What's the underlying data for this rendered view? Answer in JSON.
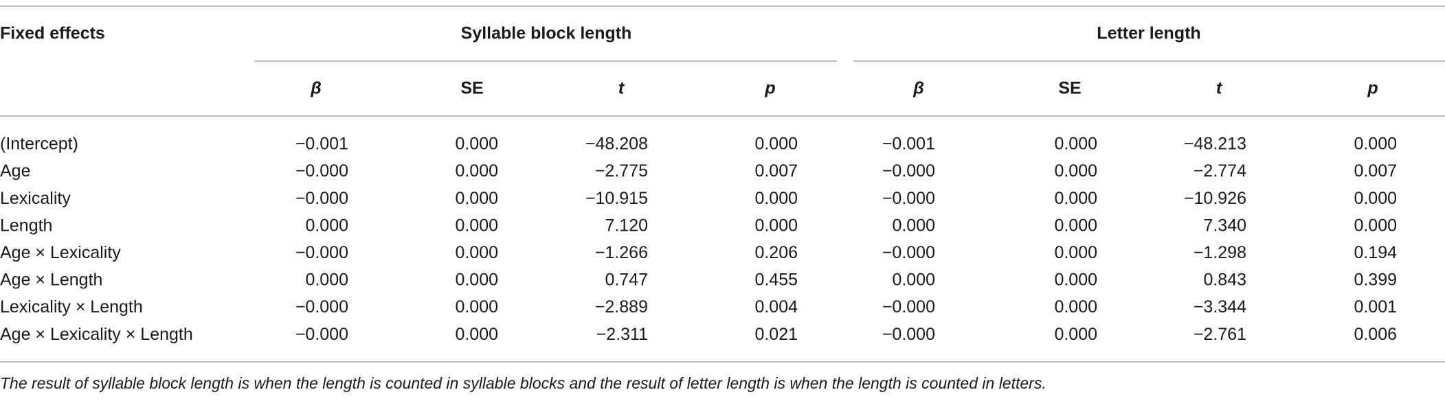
{
  "table": {
    "stub_header": "Fixed effects",
    "groups": [
      {
        "title": "Syllable block length",
        "columns": [
          "β",
          "SE",
          "t",
          "p"
        ]
      },
      {
        "title": "Letter length",
        "columns": [
          "β",
          "SE",
          "t",
          "p"
        ]
      }
    ],
    "rows": [
      [
        "(Intercept)",
        "−0.001",
        "0.000",
        "−48.208",
        "0.000",
        "−0.001",
        "0.000",
        "−48.213",
        "0.000"
      ],
      [
        "Age",
        "−0.000",
        "0.000",
        "−2.775",
        "0.007",
        "−0.000",
        "0.000",
        "−2.774",
        "0.007"
      ],
      [
        "Lexicality",
        "−0.000",
        "0.000",
        "−10.915",
        "0.000",
        "−0.000",
        "0.000",
        "−10.926",
        "0.000"
      ],
      [
        "Length",
        "0.000",
        "0.000",
        "7.120",
        "0.000",
        "0.000",
        "0.000",
        "7.340",
        "0.000"
      ],
      [
        "Age × Lexicality",
        "−0.000",
        "0.000",
        "−1.266",
        "0.206",
        "−0.000",
        "0.000",
        "−1.298",
        "0.194"
      ],
      [
        "Age × Length",
        "0.000",
        "0.000",
        "0.747",
        "0.455",
        "0.000",
        "0.000",
        "0.843",
        "0.399"
      ],
      [
        "Lexicality × Length",
        "−0.000",
        "0.000",
        "−2.889",
        "0.004",
        "−0.000",
        "0.000",
        "−3.344",
        "0.001"
      ],
      [
        "Age × Lexicality × Length",
        "−0.000",
        "0.000",
        "−2.311",
        "0.021",
        "−0.000",
        "0.000",
        "−2.761",
        "0.006"
      ]
    ]
  },
  "footnote": "The result of syllable block length is when the length is counted in syllable blocks and the result of letter length is when the length is counted in letters."
}
